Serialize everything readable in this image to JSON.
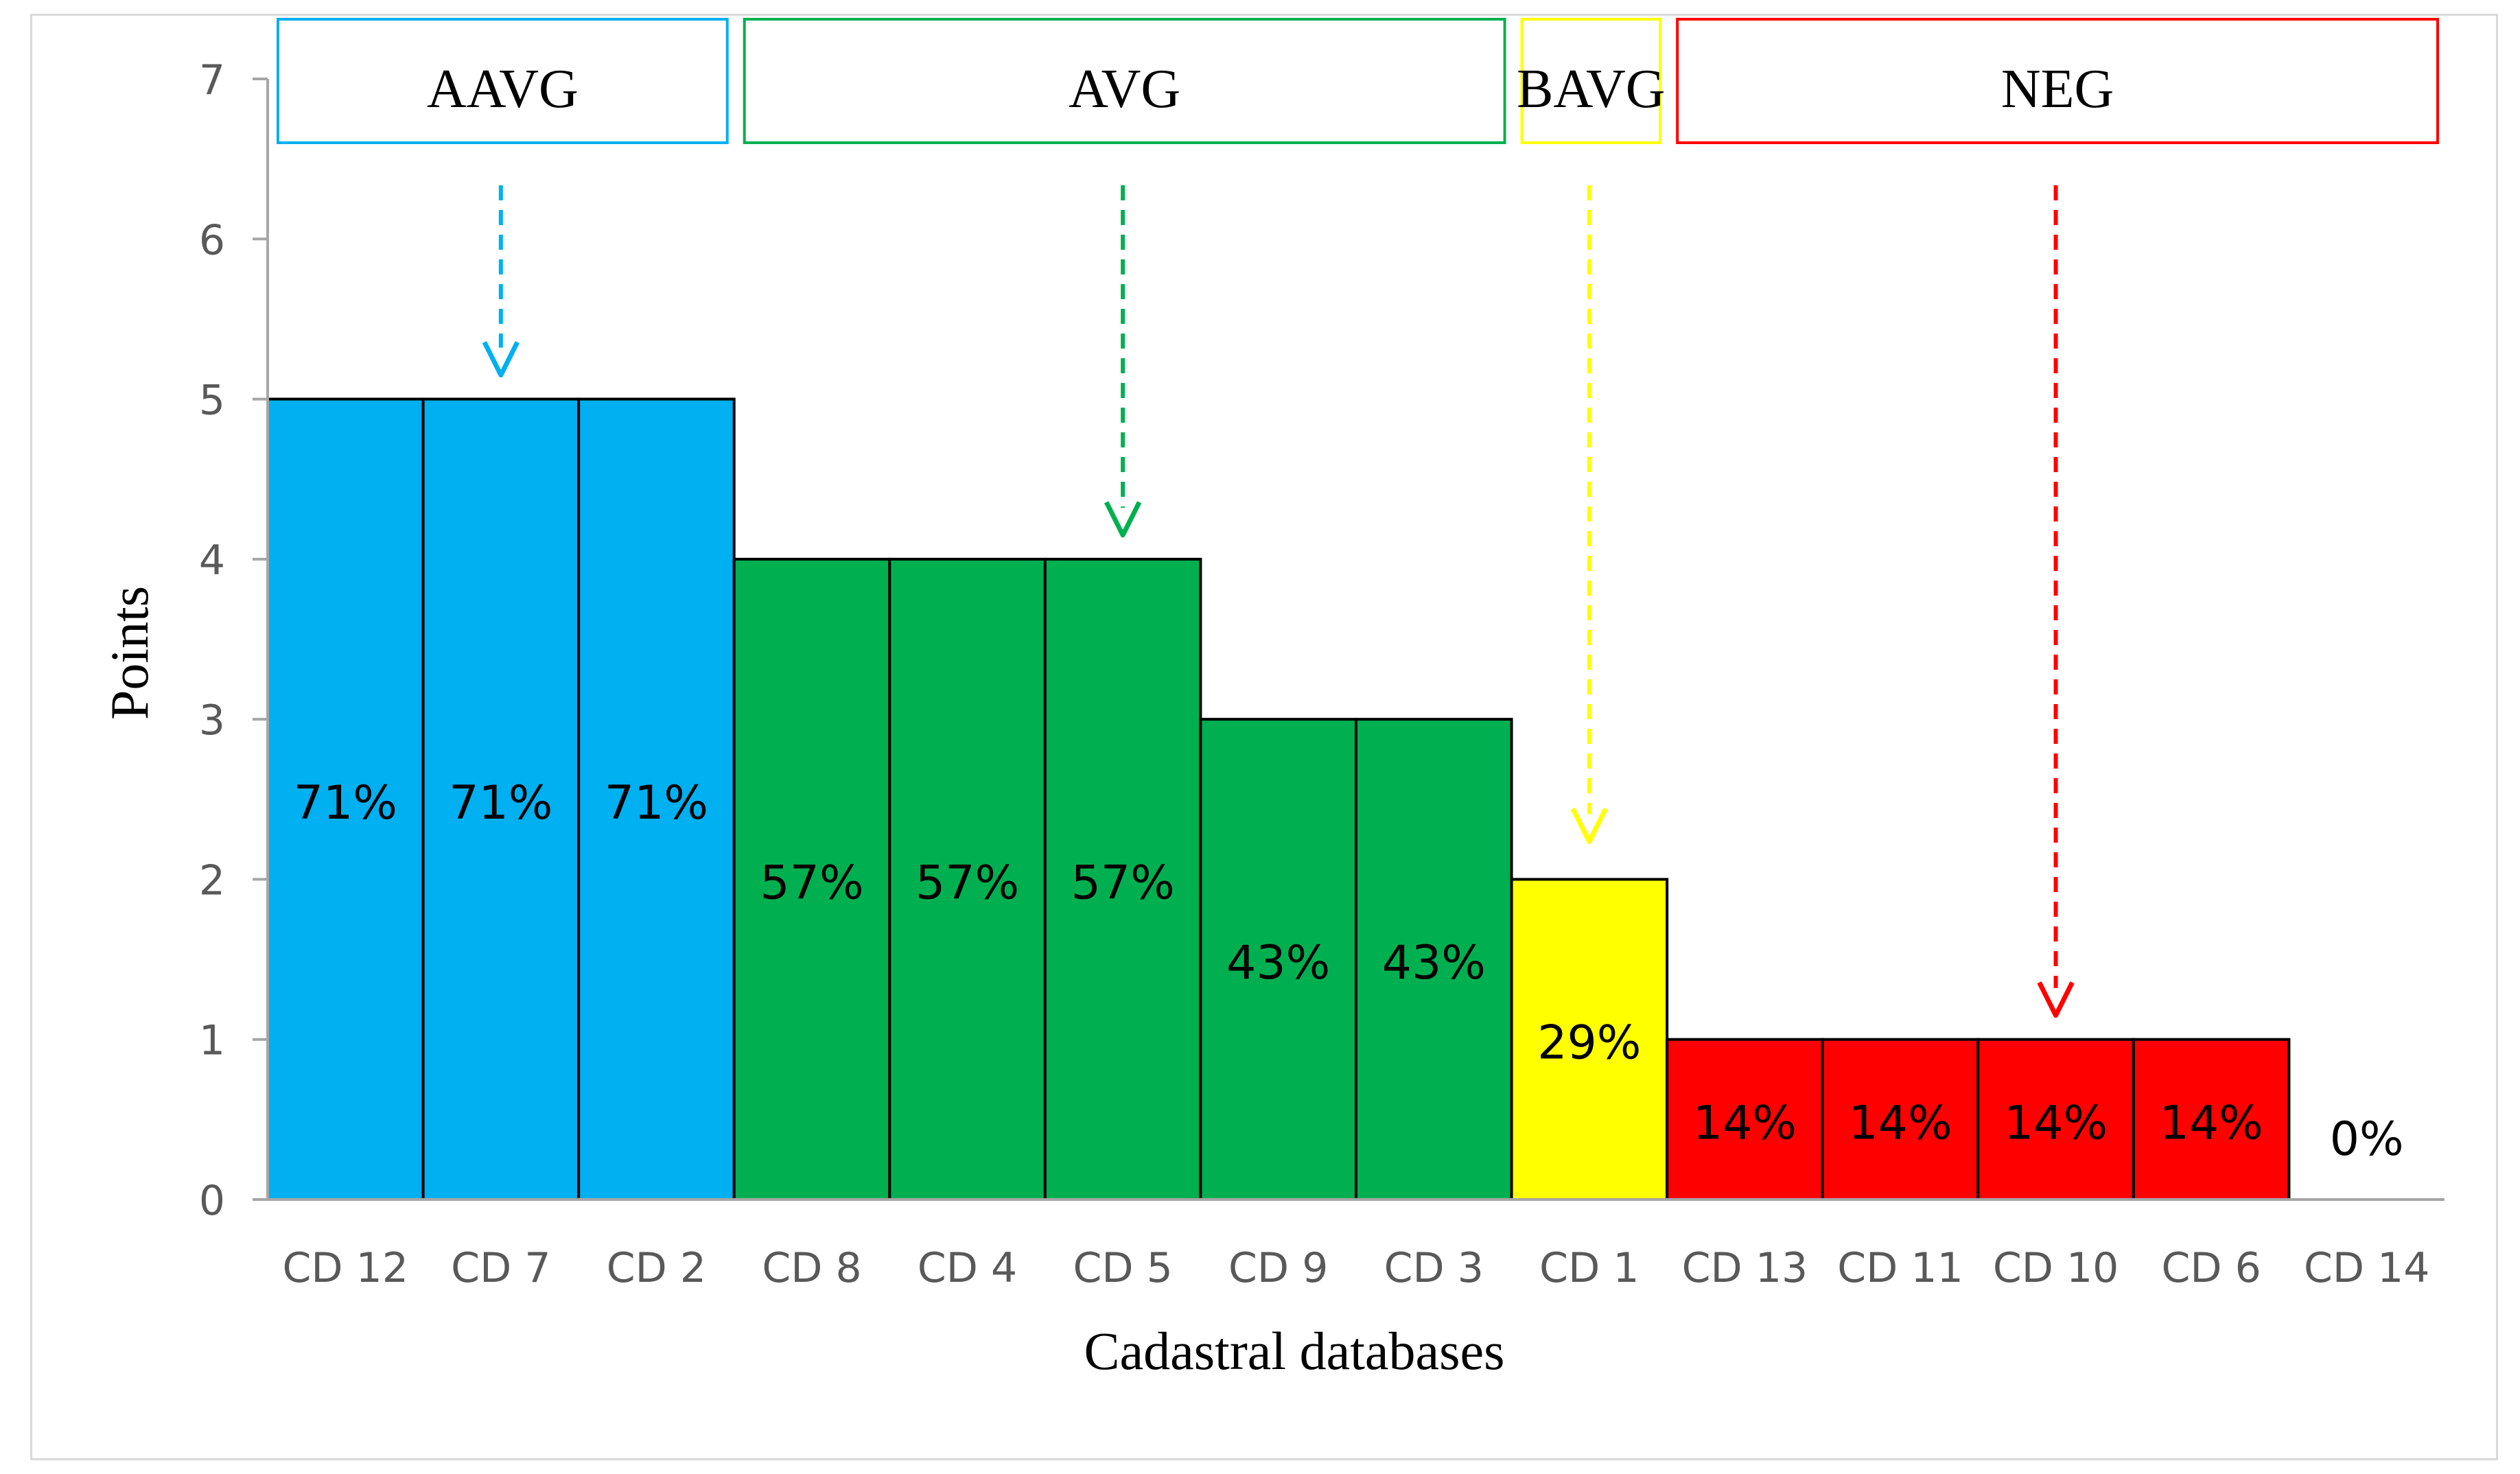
{
  "chart_data": {
    "type": "bar",
    "title": "",
    "xlabel": "Cadastral databases",
    "ylabel": "Points",
    "ylim": [
      0,
      7
    ],
    "yticks": [
      0,
      1,
      2,
      3,
      4,
      5,
      6,
      7
    ],
    "grid": false,
    "categories": [
      "CD 12",
      "CD 7",
      "CD 2",
      "CD 8",
      "CD 4",
      "CD 5",
      "CD 9",
      "CD 3",
      "CD 1",
      "CD 13",
      "CD 11",
      "CD 10",
      "CD 6",
      "CD 14"
    ],
    "values": [
      5,
      5,
      5,
      4,
      4,
      4,
      3,
      3,
      2,
      1,
      1,
      1,
      1,
      0
    ],
    "data_labels": [
      "71%",
      "71%",
      "71%",
      "57%",
      "57%",
      "57%",
      "43%",
      "43%",
      "29%",
      "14%",
      "14%",
      "14%",
      "14%",
      "0%"
    ],
    "groups": [
      {
        "name": "AAVG",
        "color": "#00b0f0",
        "start": 0,
        "end": 2
      },
      {
        "name": "AVG",
        "color": "#00b050",
        "start": 3,
        "end": 7
      },
      {
        "name": "BAVG",
        "color": "#ffff00",
        "start": 8,
        "end": 8
      },
      {
        "name": "NEG",
        "color": "#ff0000",
        "start": 9,
        "end": 13
      }
    ]
  }
}
